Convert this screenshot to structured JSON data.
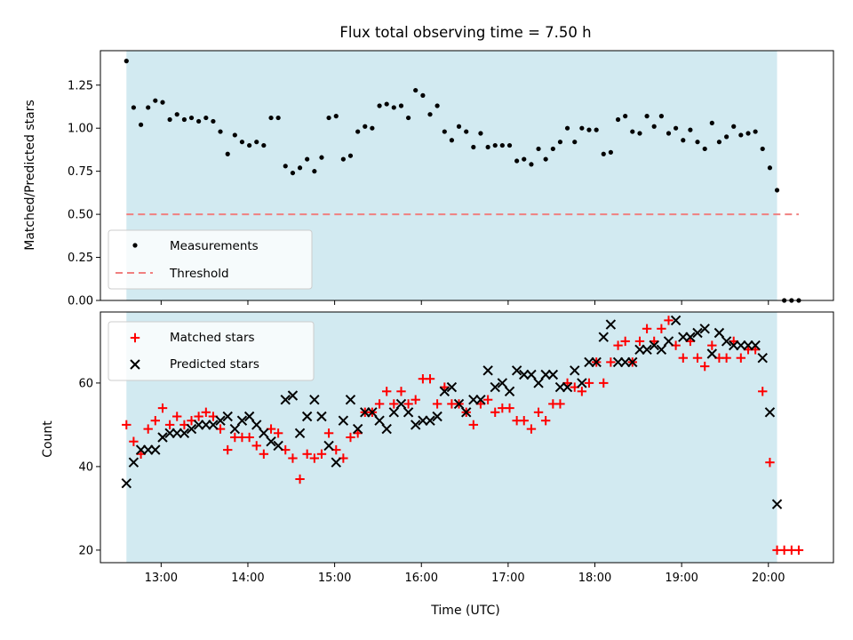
{
  "chart_data": [
    {
      "type": "scatter",
      "title": "Flux total observing time = 7.50 h",
      "xlabel": "",
      "ylabel": "Matched/Predicted stars",
      "ylim": [
        0.0,
        1.45
      ],
      "yticks": [
        "0.00",
        "0.25",
        "0.50",
        "0.75",
        "1.00",
        "1.25"
      ],
      "xlim_hours": [
        12.3,
        20.75
      ],
      "shade_hours": [
        12.6,
        20.1
      ],
      "shade_color": "#add8e6",
      "legend": [
        "Measurements",
        "Threshold"
      ],
      "legend_position": "lower-left",
      "threshold": {
        "name": "Threshold",
        "value": 0.5,
        "x_hours": [
          12.6,
          20.35
        ],
        "color": "#f08080",
        "style": "dashed"
      },
      "series": [
        {
          "name": "Measurements",
          "marker": "dot",
          "color": "#000000",
          "x_hours": [
            12.6,
            12.683,
            12.767,
            12.85,
            12.933,
            13.017,
            13.1,
            13.183,
            13.267,
            13.35,
            13.433,
            13.517,
            13.6,
            13.683,
            13.767,
            13.85,
            13.933,
            14.017,
            14.1,
            14.183,
            14.267,
            14.35,
            14.433,
            14.517,
            14.6,
            14.683,
            14.767,
            14.85,
            14.933,
            15.017,
            15.1,
            15.183,
            15.267,
            15.35,
            15.433,
            15.517,
            15.6,
            15.683,
            15.767,
            15.85,
            15.933,
            16.017,
            16.1,
            16.183,
            16.267,
            16.35,
            16.433,
            16.517,
            16.6,
            16.683,
            16.767,
            16.85,
            16.933,
            17.017,
            17.1,
            17.183,
            17.267,
            17.35,
            17.433,
            17.517,
            17.6,
            17.683,
            17.767,
            17.85,
            17.933,
            18.017,
            18.1,
            18.183,
            18.267,
            18.35,
            18.433,
            18.517,
            18.6,
            18.683,
            18.767,
            18.85,
            18.933,
            19.017,
            19.1,
            19.183,
            19.267,
            19.35,
            19.433,
            19.517,
            19.6,
            19.683,
            19.767,
            19.85,
            19.933,
            20.017,
            20.1,
            20.183,
            20.267,
            20.35
          ],
          "y": [
            1.39,
            1.12,
            1.02,
            1.12,
            1.16,
            1.15,
            1.05,
            1.08,
            1.05,
            1.06,
            1.04,
            1.06,
            1.04,
            0.98,
            0.85,
            0.96,
            0.92,
            0.9,
            0.92,
            0.9,
            1.06,
            1.06,
            0.78,
            0.74,
            0.77,
            0.82,
            0.75,
            0.83,
            1.06,
            1.07,
            0.82,
            0.84,
            0.98,
            1.01,
            1.0,
            1.13,
            1.14,
            1.12,
            1.13,
            1.06,
            1.22,
            1.19,
            1.08,
            1.13,
            0.98,
            0.93,
            1.01,
            0.98,
            0.89,
            0.97,
            0.89,
            0.9,
            0.9,
            0.9,
            0.81,
            0.82,
            0.79,
            0.88,
            0.82,
            0.88,
            0.92,
            1.0,
            0.92,
            1.0,
            0.99,
            0.99,
            0.85,
            0.86,
            1.05,
            1.07,
            0.98,
            0.97,
            1.07,
            1.01,
            1.07,
            0.97,
            1.0,
            0.93,
            0.99,
            0.92,
            0.88,
            1.03,
            0.92,
            0.95,
            1.01,
            0.96,
            0.97,
            0.98,
            0.88,
            0.77,
            0.64,
            0.0,
            0.0,
            0.0
          ]
        }
      ]
    },
    {
      "type": "scatter",
      "title": "",
      "xlabel": "Time (UTC)",
      "ylabel": "Count",
      "ylim": [
        17,
        77
      ],
      "yticks": [
        "20",
        "40",
        "60"
      ],
      "xticks": [
        "13:00",
        "14:00",
        "15:00",
        "16:00",
        "17:00",
        "18:00",
        "19:00",
        "20:00"
      ],
      "xlim_hours": [
        12.3,
        20.75
      ],
      "shade_hours": [
        12.6,
        20.1
      ],
      "legend": [
        "Matched stars",
        "Predicted stars"
      ],
      "legend_position": "upper-left",
      "x_hours": [
        12.6,
        12.683,
        12.767,
        12.85,
        12.933,
        13.017,
        13.1,
        13.183,
        13.267,
        13.35,
        13.433,
        13.517,
        13.6,
        13.683,
        13.767,
        13.85,
        13.933,
        14.017,
        14.1,
        14.183,
        14.267,
        14.35,
        14.433,
        14.517,
        14.6,
        14.683,
        14.767,
        14.85,
        14.933,
        15.017,
        15.1,
        15.183,
        15.267,
        15.35,
        15.433,
        15.517,
        15.6,
        15.683,
        15.767,
        15.85,
        15.933,
        16.017,
        16.1,
        16.183,
        16.267,
        16.35,
        16.433,
        16.517,
        16.6,
        16.683,
        16.767,
        16.85,
        16.933,
        17.017,
        17.1,
        17.183,
        17.267,
        17.35,
        17.433,
        17.517,
        17.6,
        17.683,
        17.767,
        17.85,
        17.933,
        18.017,
        18.1,
        18.183,
        18.267,
        18.35,
        18.433,
        18.517,
        18.6,
        18.683,
        18.767,
        18.85,
        18.933,
        19.017,
        19.1,
        19.183,
        19.267,
        19.35,
        19.433,
        19.517,
        19.6,
        19.683,
        19.767,
        19.85,
        19.933,
        20.017,
        20.1,
        20.183,
        20.267,
        20.35
      ],
      "series": [
        {
          "name": "Matched stars",
          "marker": "plus",
          "color": "#ff0000",
          "values": [
            50,
            46,
            43,
            49,
            51,
            54,
            50,
            52,
            50,
            51,
            52,
            53,
            52,
            49,
            44,
            47,
            47,
            47,
            45,
            43,
            49,
            48,
            44,
            42,
            37,
            43,
            42,
            43,
            48,
            44,
            42,
            47,
            48,
            53,
            53,
            55,
            58,
            55,
            58,
            55,
            56,
            61,
            61,
            55,
            59,
            55,
            55,
            53,
            50,
            55,
            56,
            53,
            54,
            54,
            51,
            51,
            49,
            53,
            51,
            55,
            55,
            60,
            59,
            58,
            60,
            65,
            60,
            65,
            69,
            70,
            65,
            70,
            73,
            70,
            73,
            75,
            69,
            66,
            70,
            66,
            64,
            69,
            66,
            66,
            70,
            66,
            68,
            68,
            58,
            41,
            20,
            20,
            20,
            20
          ]
        },
        {
          "name": "Predicted stars",
          "marker": "x",
          "color": "#000000",
          "values": [
            36,
            41,
            44,
            44,
            44,
            47,
            48,
            48,
            48,
            49,
            50,
            50,
            50,
            51,
            52,
            49,
            51,
            52,
            50,
            48,
            46,
            45,
            56,
            57,
            48,
            52,
            56,
            52,
            45,
            41,
            51,
            56,
            49,
            53,
            53,
            51,
            49,
            53,
            55,
            53,
            50,
            51,
            51,
            52,
            58,
            59,
            55,
            53,
            56,
            56,
            63,
            59,
            60,
            58,
            63,
            62,
            62,
            60,
            62,
            62,
            59,
            59,
            63,
            60,
            65,
            65,
            71,
            74,
            65,
            65,
            65,
            68,
            68,
            69,
            68,
            70,
            75,
            71,
            71,
            72,
            73,
            67,
            72,
            70,
            69,
            69,
            69,
            69,
            66,
            53,
            31
          ]
        }
      ]
    }
  ]
}
